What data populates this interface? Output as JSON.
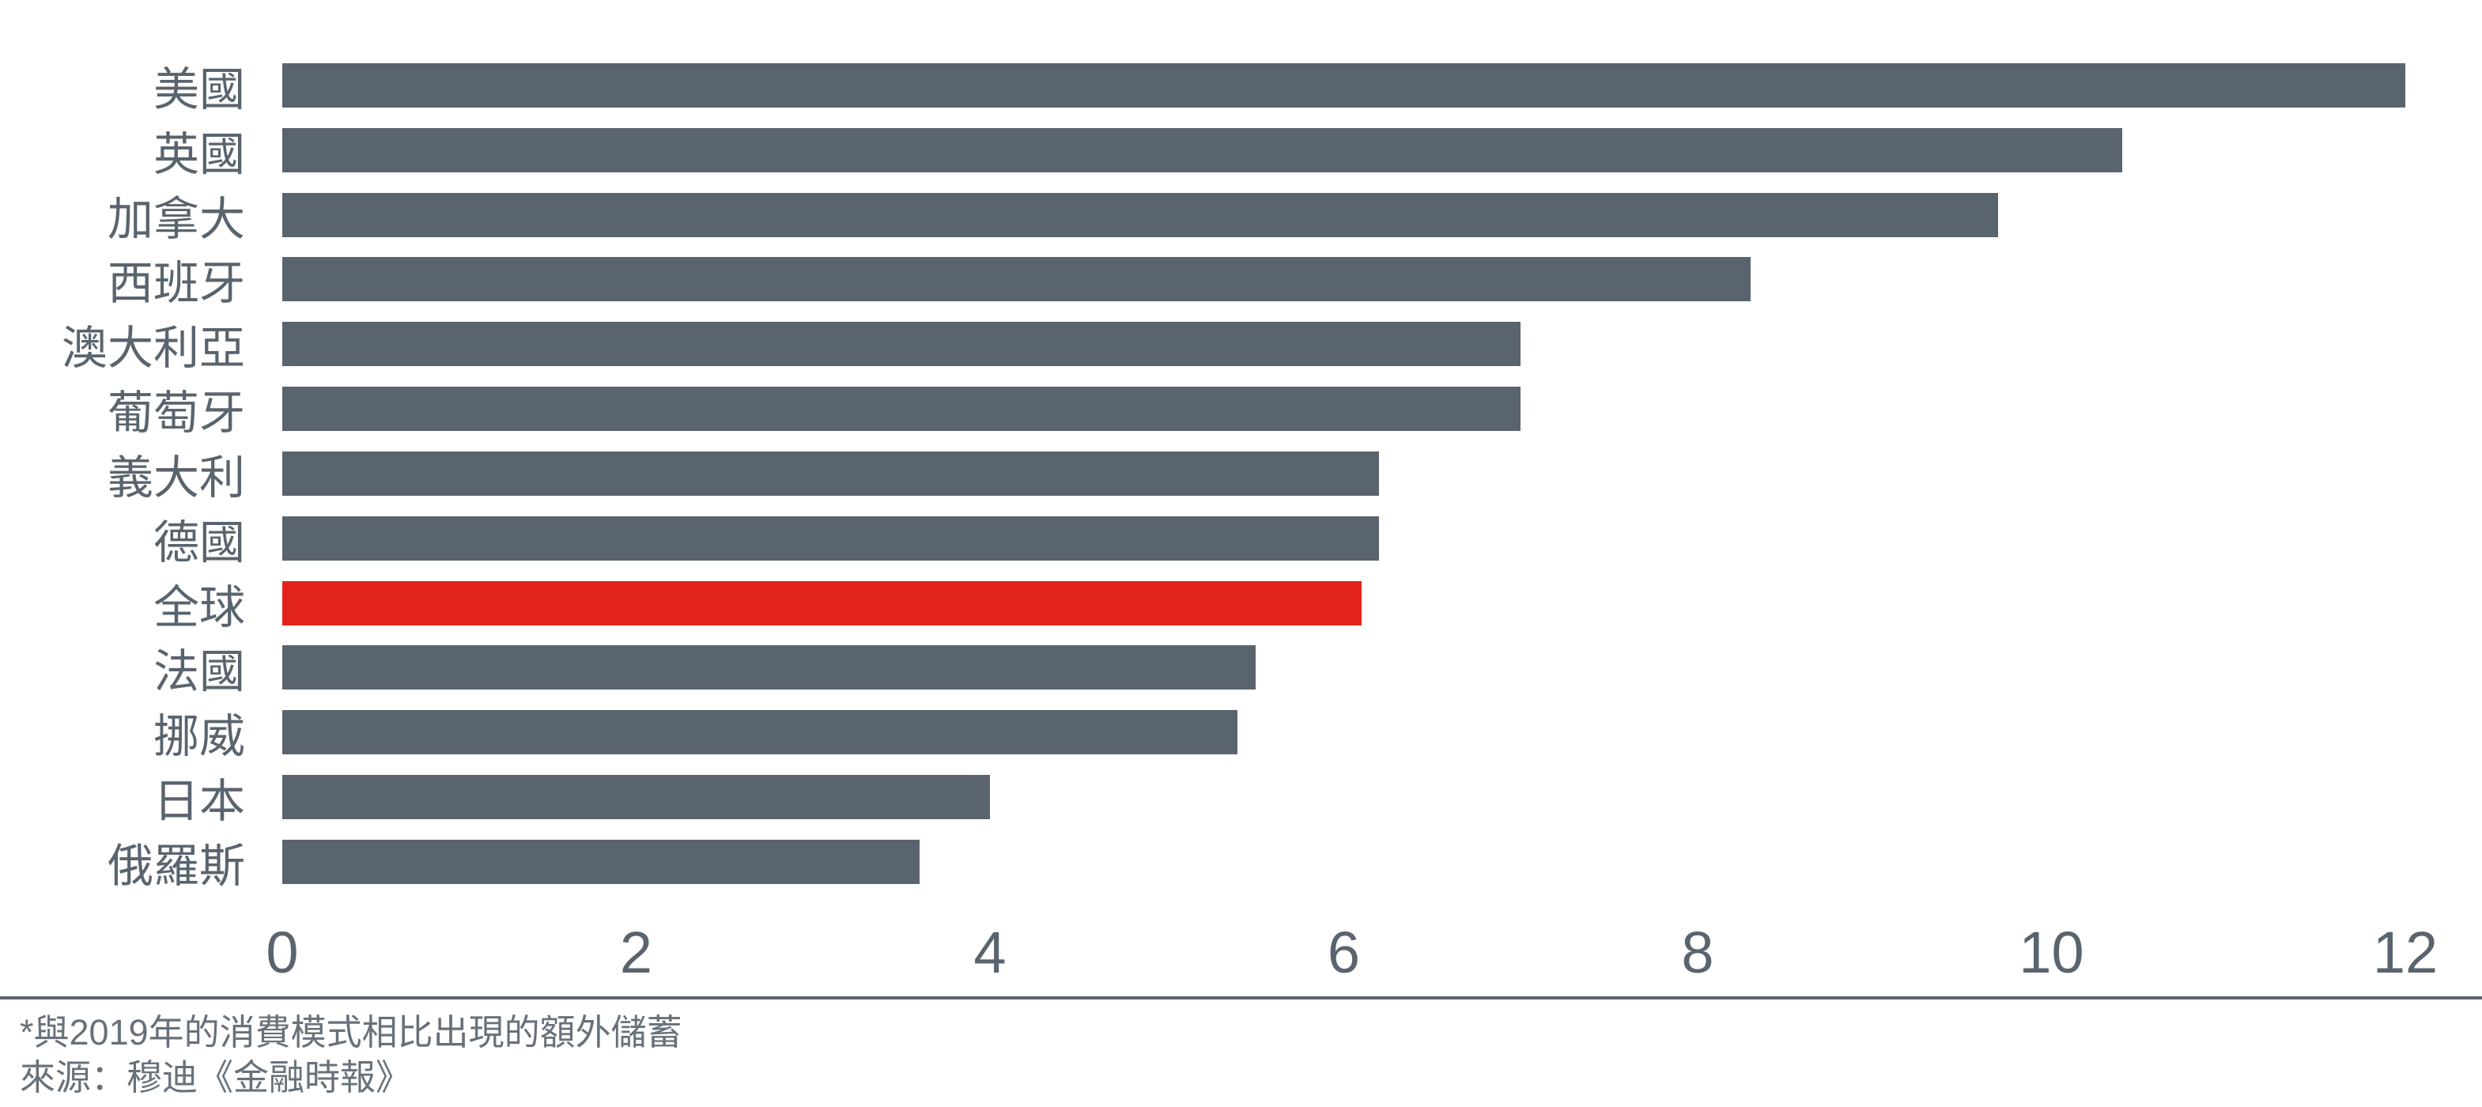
{
  "chart_data": {
    "type": "bar",
    "orientation": "horizontal",
    "title": "",
    "xlabel": "",
    "ylabel": "",
    "categories": [
      "美國",
      "英國",
      "加拿大",
      "西班牙",
      "澳大利亞",
      "葡萄牙",
      "義大利",
      "德國",
      "全球",
      "法國",
      "挪威",
      "日本",
      "俄羅斯"
    ],
    "values": [
      12,
      10.4,
      9.7,
      8.3,
      7.0,
      7.0,
      6.2,
      6.2,
      6.1,
      5.5,
      5.4,
      4.0,
      3.6
    ],
    "highlight_category": "全球",
    "highlight_index": 8,
    "xlim": [
      0,
      12
    ],
    "x_ticks": [
      0,
      2,
      4,
      6,
      8,
      10,
      12
    ],
    "grid": false,
    "legend": null,
    "bar_color": "#5a646e",
    "highlight_color": "#e2231b",
    "axis_text_color": "#5a646e"
  },
  "footer": {
    "note": "*與2019年的消費模式相比出現的額外儲蓄",
    "source": "來源：穆迪《金融時報》"
  }
}
